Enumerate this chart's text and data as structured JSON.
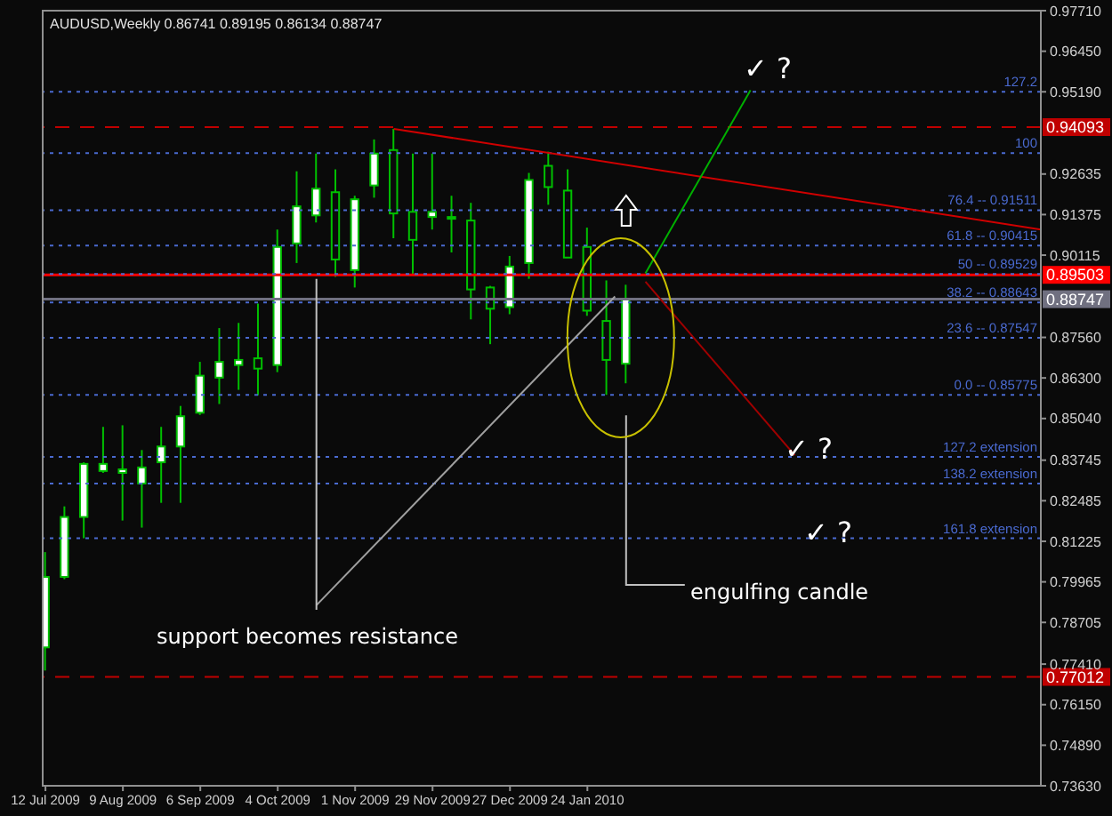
{
  "chart_data": {
    "type": "candlestick",
    "title": "AUDUSD,Weekly  0.86741 0.89195 0.86134 0.88747",
    "color": "#00c000",
    "x": [
      "2009-07-12",
      "2009-07-19",
      "2009-07-26",
      "2009-08-02",
      "2009-08-09",
      "2009-08-16",
      "2009-08-23",
      "2009-08-30",
      "2009-09-06",
      "2009-09-13",
      "2009-09-20",
      "2009-09-27",
      "2009-10-04",
      "2009-10-11",
      "2009-10-18",
      "2009-10-25",
      "2009-11-01",
      "2009-11-08",
      "2009-11-15",
      "2009-11-22",
      "2009-11-29",
      "2009-12-06",
      "2009-12-13",
      "2009-12-20",
      "2009-12-27",
      "2010-01-03",
      "2010-01-10",
      "2010-01-17",
      "2010-01-24",
      "2010-01-31",
      "2010-02-07"
    ],
    "ohlc": [
      [
        0.7793,
        0.8089,
        0.7721,
        0.8012
      ],
      [
        0.8012,
        0.8231,
        0.8005,
        0.8198
      ],
      [
        0.8198,
        0.8368,
        0.8132,
        0.8363
      ],
      [
        0.8341,
        0.8478,
        0.8335,
        0.8363
      ],
      [
        0.8335,
        0.8483,
        0.8187,
        0.8346
      ],
      [
        0.8302,
        0.8406,
        0.8165,
        0.8352
      ],
      [
        0.8368,
        0.8478,
        0.8242,
        0.8417
      ],
      [
        0.8417,
        0.8543,
        0.8242,
        0.8511
      ],
      [
        0.8522,
        0.868,
        0.8515,
        0.8637
      ],
      [
        0.8631,
        0.8785,
        0.8549,
        0.868
      ],
      [
        0.867,
        0.8801,
        0.8593,
        0.8686
      ],
      [
        0.8691,
        0.8861,
        0.8576,
        0.8659
      ],
      [
        0.867,
        0.9091,
        0.8648,
        0.9037
      ],
      [
        0.9048,
        0.9272,
        0.8987,
        0.9163
      ],
      [
        0.9135,
        0.9327,
        0.9113,
        0.9218
      ],
      [
        0.9207,
        0.9278,
        0.8944,
        0.8998
      ],
      [
        0.8965,
        0.9196,
        0.8911,
        0.9185
      ],
      [
        0.9228,
        0.9371,
        0.919,
        0.9327
      ],
      [
        0.9338,
        0.9404,
        0.9064,
        0.9141
      ],
      [
        0.9146,
        0.9327,
        0.8949,
        0.9059
      ],
      [
        0.913,
        0.9327,
        0.9091,
        0.9146
      ],
      [
        0.913,
        0.9196,
        0.902,
        0.913
      ],
      [
        0.9119,
        0.9174,
        0.8812,
        0.8905
      ],
      [
        0.8911,
        0.8916,
        0.8735,
        0.8845
      ],
      [
        0.885,
        0.9009,
        0.8828,
        0.8976
      ],
      [
        0.8987,
        0.9267,
        0.8938,
        0.9245
      ],
      [
        0.9289,
        0.9333,
        0.9168,
        0.9223
      ],
      [
        0.9212,
        0.9278,
        0.9004,
        0.9004
      ],
      [
        0.9037,
        0.9097,
        0.8823,
        0.8839
      ],
      [
        0.8807,
        0.8933,
        0.85775,
        0.8686
      ],
      [
        0.86741,
        0.89195,
        0.86134,
        0.88747
      ]
    ],
    "series": [
      {
        "type": "line",
        "color": "#d00000",
        "x": [
          "2009-11-15",
          "2010-07-07"
        ],
        "values": [
          0.9404,
          0.9091
        ]
      },
      {
        "type": "line",
        "color": "#00b000",
        "x": [
          "2010-02-14",
          "2010-03-24"
        ],
        "values": [
          0.8955,
          0.9524
        ]
      },
      {
        "type": "line",
        "color": "#a00000",
        "x": [
          "2010-02-14",
          "2010-04-09"
        ],
        "values": [
          0.8929,
          0.839
        ]
      },
      {
        "type": "line",
        "color": "#a0a0a0",
        "x": [
          "2009-10-18",
          "2010-02-03"
        ],
        "values": [
          0.7924,
          0.8883
        ]
      }
    ],
    "xlim": [
      "2009-07-11",
      "2010-07-07"
    ],
    "xticks": [
      {
        "value": "2009-07-12",
        "label": "12 Jul 2009"
      },
      {
        "value": "2009-08-09",
        "label": "9 Aug 2009"
      },
      {
        "value": "2009-09-06",
        "label": "6 Sep 2009"
      },
      {
        "value": "2009-10-04",
        "label": "4 Oct 2009"
      },
      {
        "value": "2009-11-01",
        "label": "1 Nov 2009"
      },
      {
        "value": "2009-11-29",
        "label": "29 Nov 2009"
      },
      {
        "value": "2009-12-27",
        "label": "27 Dec 2009"
      },
      {
        "value": "2010-01-24",
        "label": "24 Jan 2010"
      }
    ],
    "ylim": [
      0.7363,
      0.9771
    ],
    "yticks": [
      {
        "value": 0.9771,
        "label": "0.97710"
      },
      {
        "value": 0.9645,
        "label": "0.96450"
      },
      {
        "value": 0.9519,
        "label": "0.95190"
      },
      {
        "value": 0.92635,
        "label": "0.92635"
      },
      {
        "value": 0.91375,
        "label": "0.91375"
      },
      {
        "value": 0.90115,
        "label": "0.90115"
      },
      {
        "value": 0.8756,
        "label": "0.87560"
      },
      {
        "value": 0.863,
        "label": "0.86300"
      },
      {
        "value": 0.8504,
        "label": "0.85040"
      },
      {
        "value": 0.83745,
        "label": "0.83745"
      },
      {
        "value": 0.82485,
        "label": "0.82485"
      },
      {
        "value": 0.81225,
        "label": "0.81225"
      },
      {
        "value": 0.79965,
        "label": "0.79965"
      },
      {
        "value": 0.78705,
        "label": "0.78705"
      },
      {
        "value": 0.7741,
        "label": "0.77410"
      },
      {
        "value": 0.7615,
        "label": "0.76150"
      },
      {
        "value": 0.7489,
        "label": "0.74890"
      },
      {
        "value": 0.7363,
        "label": "0.73630"
      }
    ],
    "ref_lines": [
      {
        "axis": "y",
        "value": 0.94093,
        "label": "0.94093",
        "color": "#c00000",
        "line_style": "dashed"
      },
      {
        "axis": "y",
        "value": 0.89503,
        "label": "0.89503",
        "color": "#ff0000",
        "line_style": "solid"
      },
      {
        "axis": "y",
        "value": 0.88747,
        "label": "0.88747",
        "color": "#707080",
        "line_style": "solid"
      },
      {
        "axis": "y",
        "value": 0.77012,
        "label": "0.77012",
        "color": "#c00000",
        "line_style": "dashed"
      },
      {
        "axis": "y",
        "value": 0.9519,
        "color": "#4a6ad0",
        "line_style": "dotted"
      },
      {
        "axis": "y",
        "value": 0.93283,
        "color": "#4a6ad0",
        "line_style": "dotted"
      },
      {
        "axis": "y",
        "value": 0.91511,
        "color": "#4a6ad0",
        "line_style": "dotted"
      },
      {
        "axis": "y",
        "value": 0.90415,
        "color": "#4a6ad0",
        "line_style": "dotted"
      },
      {
        "axis": "y",
        "value": 0.89529,
        "color": "#4a6ad0",
        "line_style": "dotted"
      },
      {
        "axis": "y",
        "value": 0.88643,
        "color": "#4a6ad0",
        "line_style": "dotted"
      },
      {
        "axis": "y",
        "value": 0.87547,
        "color": "#4a6ad0",
        "line_style": "dotted"
      },
      {
        "axis": "y",
        "value": 0.85775,
        "color": "#4a6ad0",
        "line_style": "dotted"
      },
      {
        "axis": "y",
        "value": 0.8385,
        "color": "#4a6ad0",
        "line_style": "dotted"
      },
      {
        "axis": "y",
        "value": 0.8302,
        "color": "#4a6ad0",
        "line_style": "dotted"
      },
      {
        "axis": "y",
        "value": 0.8132,
        "color": "#4a6ad0",
        "line_style": "dotted"
      }
    ],
    "annotations": [
      {
        "text": "support becomes resistance",
        "x": "2009-10-18",
        "y": 0.8938
      },
      "engulfing candle",
      "✓ ?",
      "✓ ?",
      "✓ ?",
      {
        "text": "127.2",
        "x": "2010-07-07",
        "y": 0.9519
      },
      {
        "text": "100",
        "x": "2010-07-07",
        "y": 0.93283
      },
      {
        "text": "76.4 -- 0.91511",
        "x": "2010-07-07",
        "y": 0.91511
      },
      {
        "text": "61.8 -- 0.90415",
        "x": "2010-07-07",
        "y": 0.90415
      },
      {
        "text": "50 -- 0.89529",
        "x": "2010-07-07",
        "y": 0.89529
      },
      {
        "text": "38.2 -- 0.88643",
        "x": "2010-07-07",
        "y": 0.88643
      },
      {
        "text": "23.6 -- 0.87547",
        "x": "2010-07-07",
        "y": 0.87547
      },
      {
        "text": "0.0 -- 0.85775",
        "x": "2010-07-07",
        "y": 0.85775
      },
      {
        "text": "127.2 extension",
        "x": "2010-07-07",
        "y": 0.8385
      },
      {
        "text": "138.2 extension",
        "x": "2010-07-07",
        "y": 0.8302
      },
      {
        "text": "161.8 extension",
        "x": "2010-07-07",
        "y": 0.8132
      }
    ]
  }
}
